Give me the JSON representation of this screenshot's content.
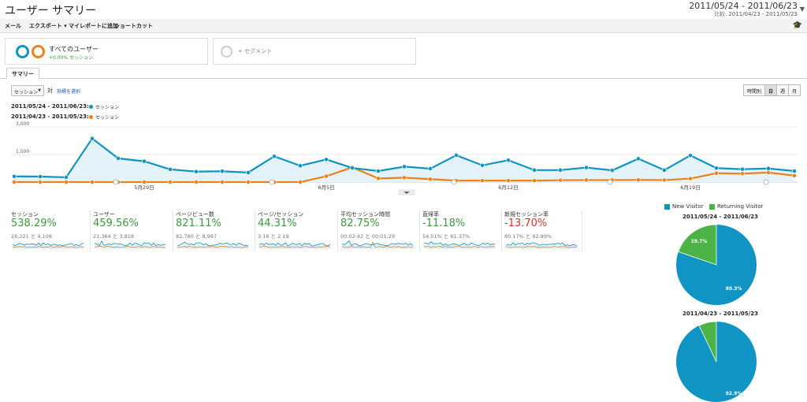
{
  "header": {
    "title": "ユーザー サマリー",
    "date_range": "2011/05/24 - 2011/06/23",
    "compare_label": "比較:",
    "compare_range": "2011/04/23 - 2011/05/23"
  },
  "toolbar": {
    "email": "メール",
    "export": "エクスポート ▾",
    "add_dashboard": "マイレポートに追加",
    "shortcut": "ショートカット"
  },
  "segments": {
    "active_name": "すべてのユーザー",
    "active_sub": "+0.00% セッション",
    "add_label": "+ セグメント"
  },
  "tabs": {
    "summary": "サマリー"
  },
  "controls": {
    "metric": "セッション",
    "vs": "対",
    "choose_metric": "指標を選択",
    "granularity": [
      "時間別",
      "日",
      "週",
      "月"
    ],
    "active_granularity": "日"
  },
  "legend": [
    {
      "range": "2011/05/24 - 2011/06/23:",
      "metric": "セッション",
      "color": "#0f94c4"
    },
    {
      "range": "2011/04/23 - 2011/05/23:",
      "metric": "セッション",
      "color": "#ee8117"
    }
  ],
  "chart_data": {
    "type": "line",
    "y_ticks": [
      "3,000",
      "1,500"
    ],
    "ylim": [
      0,
      3000
    ],
    "x_tick_labels": [
      "5月29日",
      "6月5日",
      "6月12日",
      "6月19日"
    ],
    "x_tick_indexes": [
      5,
      12,
      19,
      26
    ],
    "series": [
      {
        "name": "セッション",
        "color": "#0f94c4",
        "values": [
          310,
          300,
          260,
          2370,
          1290,
          1130,
          690,
          570,
          590,
          520,
          1400,
          890,
          1230,
          770,
          600,
          840,
          730,
          1460,
          910,
          1190,
          650,
          650,
          790,
          640,
          1270,
          650,
          1450,
          760,
          700,
          740,
          600
        ]
      },
      {
        "name": "セッション",
        "color": "#ee8117",
        "values": [
          0,
          0,
          0,
          0,
          0,
          0,
          0,
          0,
          0,
          0,
          0,
          0,
          320,
          800,
          200,
          240,
          160,
          80,
          80,
          80,
          80,
          100,
          110,
          110,
          120,
          110,
          190,
          480,
          460,
          520,
          350
        ]
      }
    ]
  },
  "stats": [
    {
      "label": "セッション",
      "value": "538.29%",
      "sub": "26,221 と 4,108",
      "tone": "pos"
    },
    {
      "label": "ユーザー",
      "value": "459.56%",
      "sub": "21,364 と 3,818",
      "tone": "pos"
    },
    {
      "label": "ページビュー数",
      "value": "821.11%",
      "sub": "82,780 と 8,987",
      "tone": "pos"
    },
    {
      "label": "ページ/セッション",
      "value": "44.31%",
      "sub": "3.16 と 2.19",
      "tone": "pos"
    },
    {
      "label": "平均セッション時間",
      "value": "82.75%",
      "sub": "00:02:42 と 00:01:29",
      "tone": "pos"
    },
    {
      "label": "直帰率",
      "value": "-11.18%",
      "sub": "54.51% と 61.37%",
      "tone": "pos"
    },
    {
      "label": "新規セッション率",
      "value": "-13.70%",
      "sub": "80.17% と 92.89%",
      "tone": "neg"
    }
  ],
  "colors": {
    "positive": "#3a9a3a",
    "negative": "#d9312b",
    "blue": "#0f94c4",
    "orange": "#ee8117",
    "green": "#4cb446"
  },
  "pie": {
    "legend": [
      {
        "label": "New Visitor",
        "color": "#0f94c4"
      },
      {
        "label": "Returning Visitor",
        "color": "#4cb446"
      }
    ],
    "charts": [
      {
        "title": "2011/05/24 - 2011/06/23",
        "new_pct": 80.3,
        "returning_pct": 19.7,
        "new_label": "80.3%",
        "returning_label": "19.7%"
      },
      {
        "title": "2011/04/23 - 2011/05/23",
        "new_pct": 92.9,
        "returning_pct": 7.1,
        "new_label": "92.9%",
        "returning_label": ""
      }
    ]
  }
}
